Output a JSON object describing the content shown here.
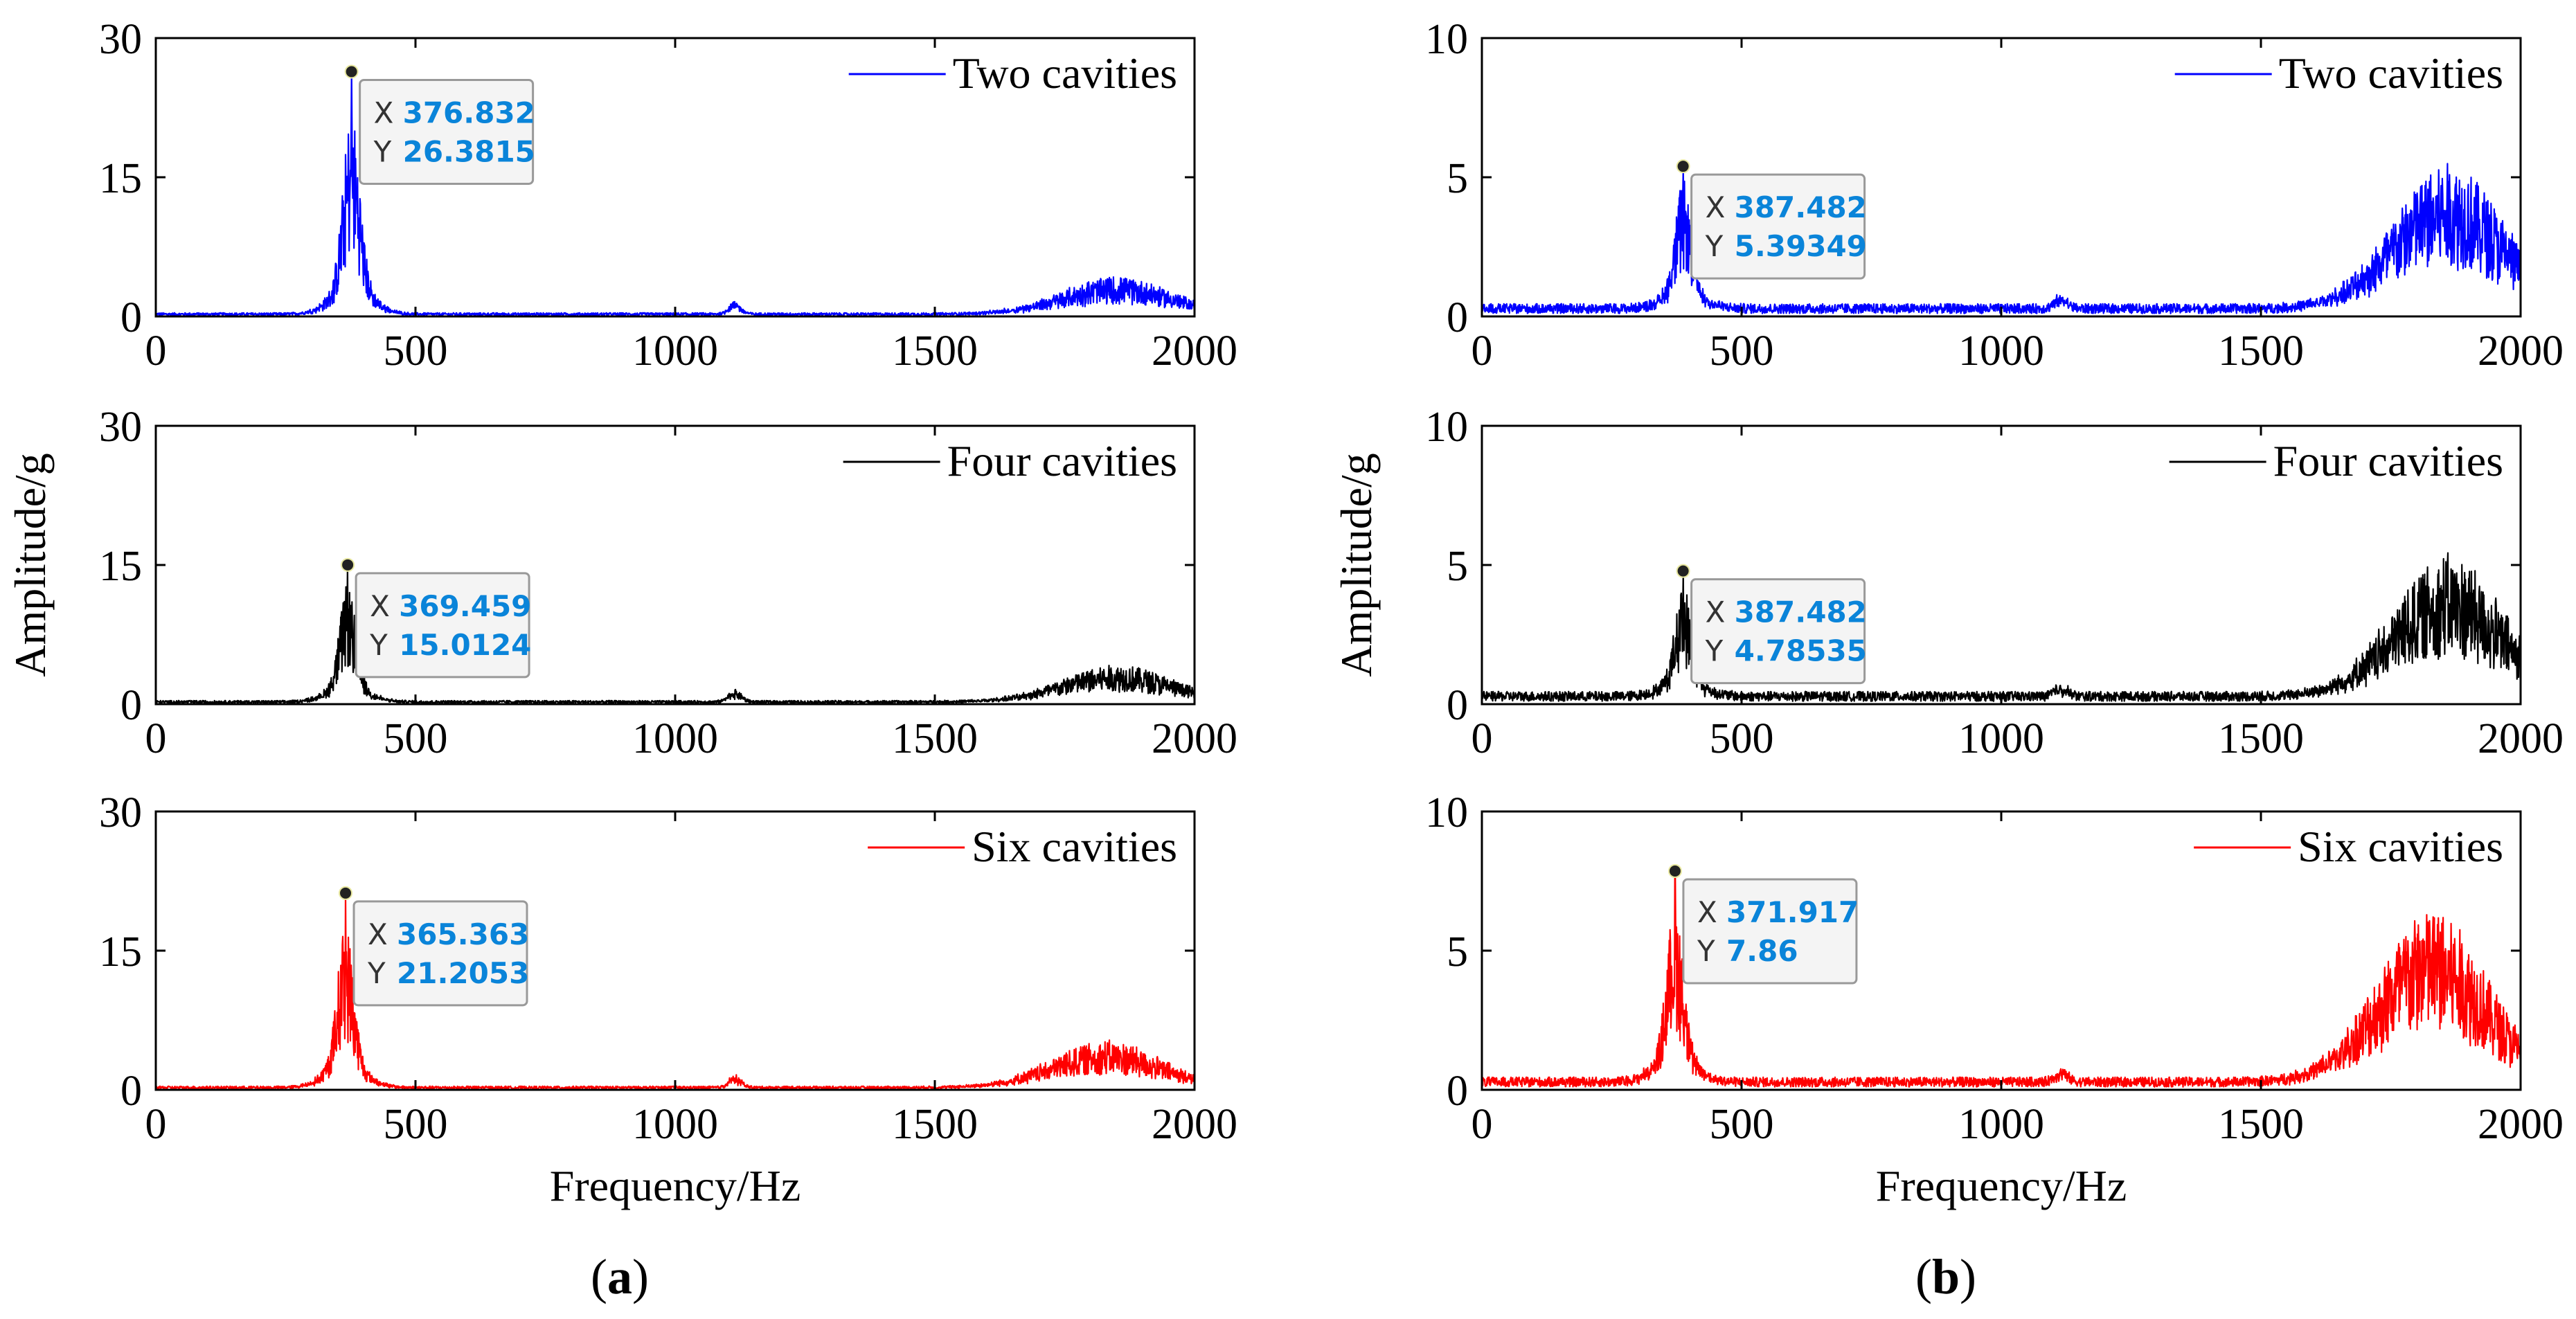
{
  "chart_data": [
    {
      "panel": "(a)",
      "type": "line",
      "title": "",
      "xlabel": "Frequency/Hz",
      "ylabel": "Amplitude/g",
      "xlim": [
        0,
        2000
      ],
      "ylim": [
        0,
        30
      ],
      "x_ticks": [
        "0",
        "500",
        "1000",
        "1500",
        "2000"
      ],
      "y_ticks": [
        "0",
        "15",
        "30"
      ],
      "series": [
        {
          "name": "Two cavities",
          "color": "#0000ff",
          "peak_x": 376.832,
          "peak_y": 26.3815,
          "base": 0.3,
          "bump_x": 1850,
          "bump_y": 3.2
        }
      ],
      "datatip": {
        "x_label": "X",
        "x_value": "376.832",
        "y_label": "Y",
        "y_value": "26.3815"
      }
    },
    {
      "panel": "(a)",
      "type": "line",
      "title": "",
      "xlabel": "Frequency/Hz",
      "ylabel": "Amplitude/g",
      "xlim": [
        0,
        2000
      ],
      "ylim": [
        0,
        30
      ],
      "x_ticks": [
        "0",
        "500",
        "1000",
        "1500",
        "2000"
      ],
      "y_ticks": [
        "0",
        "15",
        "30"
      ],
      "series": [
        {
          "name": "Four cavities",
          "color": "#000000",
          "peak_x": 369.459,
          "peak_y": 15.0124,
          "base": 0.3,
          "bump_x": 1850,
          "bump_y": 3.2
        }
      ],
      "datatip": {
        "x_label": "X",
        "x_value": "369.459",
        "y_label": "Y",
        "y_value": "15.0124"
      }
    },
    {
      "panel": "(a)",
      "type": "line",
      "title": "",
      "xlabel": "Frequency/Hz",
      "ylabel": "Amplitude/g",
      "xlim": [
        0,
        2000
      ],
      "ylim": [
        0,
        30
      ],
      "x_ticks": [
        "0",
        "500",
        "1000",
        "1500",
        "2000"
      ],
      "y_ticks": [
        "0",
        "15",
        "30"
      ],
      "series": [
        {
          "name": "Six cavities",
          "color": "#ff0000",
          "peak_x": 365.363,
          "peak_y": 21.2053,
          "base": 0.3,
          "bump_x": 1830,
          "bump_y": 4.0
        }
      ],
      "datatip": {
        "x_label": "X",
        "x_value": "365.363",
        "y_label": "Y",
        "y_value": "21.2053"
      }
    },
    {
      "panel": "(b)",
      "type": "line",
      "title": "",
      "xlabel": "Frequency/Hz",
      "ylabel": "Amplitude/g",
      "xlim": [
        0,
        2000
      ],
      "ylim": [
        0,
        10
      ],
      "x_ticks": [
        "0",
        "500",
        "1000",
        "1500",
        "2000"
      ],
      "y_ticks": [
        "0",
        "5",
        "10"
      ],
      "series": [
        {
          "name": "Two cavities",
          "color": "#0000ff",
          "peak_x": 387.482,
          "peak_y": 5.39349,
          "base": 0.35,
          "bump_x": 1860,
          "bump_y": 4.2
        }
      ],
      "datatip": {
        "x_label": "X",
        "x_value": "387.482",
        "y_label": "Y",
        "y_value": "5.39349"
      }
    },
    {
      "panel": "(b)",
      "type": "line",
      "title": "",
      "xlabel": "Frequency/Hz",
      "ylabel": "Amplitude/g",
      "xlim": [
        0,
        2000
      ],
      "ylim": [
        0,
        10
      ],
      "x_ticks": [
        "0",
        "500",
        "1000",
        "1500",
        "2000"
      ],
      "y_ticks": [
        "0",
        "5",
        "10"
      ],
      "series": [
        {
          "name": "Four cavities",
          "color": "#000000",
          "peak_x": 387.482,
          "peak_y": 4.78535,
          "base": 0.35,
          "bump_x": 1860,
          "bump_y": 4.0
        }
      ],
      "datatip": {
        "x_label": "X",
        "x_value": "387.482",
        "y_label": "Y",
        "y_value": "4.78535"
      }
    },
    {
      "panel": "(b)",
      "type": "line",
      "title": "",
      "xlabel": "Frequency/Hz",
      "ylabel": "Amplitude/g",
      "xlim": [
        0,
        2000
      ],
      "ylim": [
        0,
        10
      ],
      "x_ticks": [
        "0",
        "500",
        "1000",
        "1500",
        "2000"
      ],
      "y_ticks": [
        "0",
        "5",
        "10"
      ],
      "series": [
        {
          "name": "Six cavities",
          "color": "#ff0000",
          "peak_x": 371.917,
          "peak_y": 7.86,
          "base": 0.35,
          "bump_x": 1830,
          "bump_y": 5.0
        }
      ],
      "datatip": {
        "x_label": "X",
        "x_value": "371.917",
        "y_label": "Y",
        "y_value": "7.86"
      }
    }
  ],
  "panel_labels": [
    "(a)",
    "(b)"
  ],
  "datatip_value_color": "#0a84d9"
}
